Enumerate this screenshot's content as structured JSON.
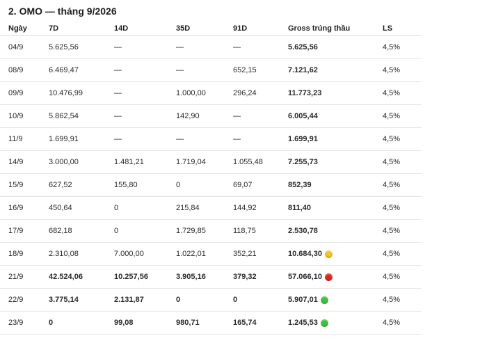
{
  "title": "2. OMO — tháng 9/2026",
  "columns": [
    "Ngày",
    "7D",
    "14D",
    "35D",
    "91D",
    "Gross trúng thầu",
    "LS"
  ],
  "status_colors": {
    "yellow": "#f5c518",
    "red": "#e0251b",
    "green": "#3cc13b"
  },
  "rows": [
    {
      "day": "04/9",
      "d7": "5.625,56",
      "d14": "—",
      "d35": "—",
      "d91": "—",
      "gross": "5.625,56",
      "ls": "4,5%",
      "status": "",
      "bold": false
    },
    {
      "day": "08/9",
      "d7": "6.469,47",
      "d14": "—",
      "d35": "—",
      "d91": "652,15",
      "gross": "7.121,62",
      "ls": "4,5%",
      "status": "",
      "bold": false
    },
    {
      "day": "09/9",
      "d7": "10.476,99",
      "d14": "—",
      "d35": "1.000,00",
      "d91": "296,24",
      "gross": "11.773,23",
      "ls": "4,5%",
      "status": "",
      "bold": false
    },
    {
      "day": "10/9",
      "d7": "5.862,54",
      "d14": "—",
      "d35": "142,90",
      "d91": "—",
      "gross": "6.005,44",
      "ls": "4,5%",
      "status": "",
      "bold": false
    },
    {
      "day": "11/9",
      "d7": "1.699,91",
      "d14": "—",
      "d35": "—",
      "d91": "—",
      "gross": "1.699,91",
      "ls": "4,5%",
      "status": "",
      "bold": false
    },
    {
      "day": "14/9",
      "d7": "3.000,00",
      "d14": "1.481,21",
      "d35": "1.719,04",
      "d91": "1.055,48",
      "gross": "7.255,73",
      "ls": "4,5%",
      "status": "",
      "bold": false
    },
    {
      "day": "15/9",
      "d7": "627,52",
      "d14": "155,80",
      "d35": "0",
      "d91": "69,07",
      "gross": "852,39",
      "ls": "4,5%",
      "status": "",
      "bold": false
    },
    {
      "day": "16/9",
      "d7": "450,64",
      "d14": "0",
      "d35": "215,84",
      "d91": "144,92",
      "gross": "811,40",
      "ls": "4,5%",
      "status": "",
      "bold": false
    },
    {
      "day": "17/9",
      "d7": "682,18",
      "d14": "0",
      "d35": "1.729,85",
      "d91": "118,75",
      "gross": "2.530,78",
      "ls": "4,5%",
      "status": "",
      "bold": false
    },
    {
      "day": "18/9",
      "d7": "2.310,08",
      "d14": "7.000,00",
      "d35": "1.022,01",
      "d91": "352,21",
      "gross": "10.684,30",
      "ls": "4,5%",
      "status": "yellow",
      "bold": false
    },
    {
      "day": "21/9",
      "d7": "42.524,06",
      "d14": "10.257,56",
      "d35": "3.905,16",
      "d91": "379,32",
      "gross": "57.066,10",
      "ls": "4,5%",
      "status": "red",
      "bold": true
    },
    {
      "day": "22/9",
      "d7": "3.775,14",
      "d14": "2.131,87",
      "d35": "0",
      "d91": "0",
      "gross": "5.907,01",
      "ls": "4,5%",
      "status": "green",
      "bold": true
    },
    {
      "day": "23/9",
      "d7": "0",
      "d14": "99,08",
      "d35": "980,71",
      "d91": "165,74",
      "gross": "1.245,53",
      "ls": "4,5%",
      "status": "green",
      "bold": true
    }
  ]
}
